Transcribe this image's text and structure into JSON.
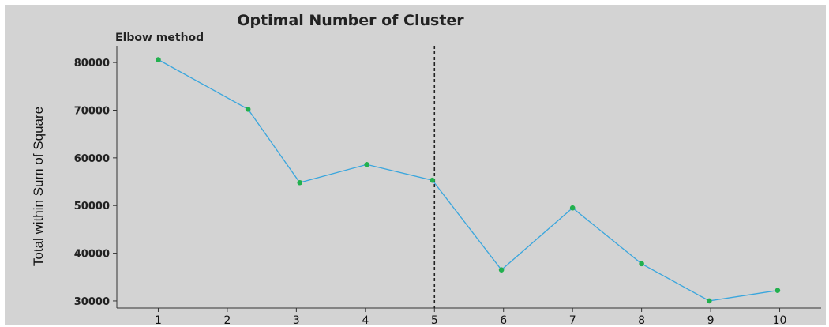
{
  "chart_data": {
    "type": "line",
    "title": "Optimal Number of Cluster",
    "subtitle": "Elbow method",
    "xlabel": "",
    "ylabel": "Total within Sum of Square",
    "categories": [
      "1",
      "2",
      "3",
      "4",
      "5",
      "6",
      "7",
      "8",
      "9",
      "10"
    ],
    "points": [
      {
        "x": 1.0,
        "y": 80600
      },
      {
        "x": 2.3,
        "y": 70200
      },
      {
        "x": 3.05,
        "y": 54800
      },
      {
        "x": 4.02,
        "y": 58600
      },
      {
        "x": 4.97,
        "y": 55300
      },
      {
        "x": 5.97,
        "y": 36500
      },
      {
        "x": 7.0,
        "y": 49500
      },
      {
        "x": 8.0,
        "y": 37800
      },
      {
        "x": 8.98,
        "y": 30000
      },
      {
        "x": 9.97,
        "y": 32200
      }
    ],
    "xlim": [
      0.4,
      10.6
    ],
    "ylim": [
      28500,
      83500
    ],
    "yticks": [
      30000,
      40000,
      50000,
      60000,
      70000,
      80000
    ],
    "ytick_labels": [
      "30000",
      "40000",
      "50000",
      "60000",
      "70000",
      "80000"
    ],
    "reference_line_x": 5,
    "grid": false,
    "line_color": "#3aa6dd",
    "point_color": "#22b04e",
    "reference_line_color": "#222222",
    "background": "#d3d3d3"
  }
}
